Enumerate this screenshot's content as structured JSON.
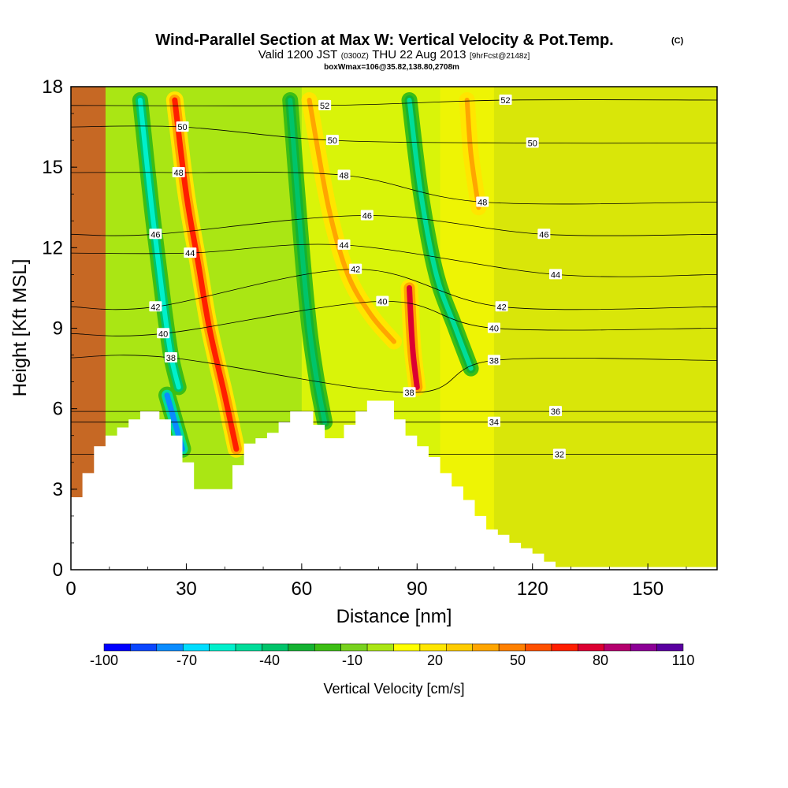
{
  "header": {
    "title": "Wind-Parallel Section at Max W: Vertical Velocity & Pot.Temp.",
    "title_tag": "(C)",
    "valid_prefix": "Valid 1200 JST",
    "valid_utc": "(0300Z)",
    "valid_date": "THU 22 Aug 2013",
    "forecast_tag": "[9hrFcst@2148z]",
    "box_info": "boxWmax=106@35.82,138.80,2708m"
  },
  "chart_data": {
    "type": "heatmap",
    "title": "Wind-Parallel Section at Max W: Vertical Velocity & Pot.Temp.",
    "xlabel": "Distance [nm]",
    "ylabel": "Height [Kft MSL]",
    "xlim": [
      0,
      168
    ],
    "ylim": [
      0,
      18
    ],
    "xticks": [
      0,
      30,
      60,
      90,
      120,
      150
    ],
    "yticks": [
      0,
      3,
      6,
      9,
      12,
      15,
      18
    ],
    "colorbar": {
      "label": "Vertical Velocity [cm/s]",
      "tick_labels": [
        -100,
        -70,
        -40,
        -10,
        20,
        50,
        80,
        110
      ],
      "levels": [
        -100,
        -90,
        -80,
        -70,
        -60,
        -50,
        -40,
        -30,
        -20,
        -10,
        0,
        10,
        20,
        30,
        40,
        50,
        60,
        70,
        80,
        90,
        100,
        110
      ],
      "colors": [
        "#0000ff",
        "#0a46ff",
        "#0a8cff",
        "#00ddff",
        "#00f0cc",
        "#00dd9a",
        "#00c46a",
        "#14b232",
        "#3cbe14",
        "#78d21e",
        "#aae614",
        "#ffff00",
        "#ffe600",
        "#ffcc00",
        "#ffa500",
        "#ff8000",
        "#ff5000",
        "#ff1e00",
        "#dc0032",
        "#b4006e",
        "#8c0096",
        "#5a00a0"
      ]
    },
    "terrain_top_kft": [
      [
        0,
        2.7
      ],
      [
        3,
        3.6
      ],
      [
        6,
        4.6
      ],
      [
        9,
        5.0
      ],
      [
        12,
        5.3
      ],
      [
        15,
        5.6
      ],
      [
        18,
        5.9
      ],
      [
        23,
        5.6
      ],
      [
        26,
        5.0
      ],
      [
        29,
        4.0
      ],
      [
        32,
        3.0
      ],
      [
        38,
        3.0
      ],
      [
        42,
        3.9
      ],
      [
        45,
        4.7
      ],
      [
        48,
        4.9
      ],
      [
        51,
        5.1
      ],
      [
        54,
        5.5
      ],
      [
        57,
        5.9
      ],
      [
        60,
        5.9
      ],
      [
        63,
        5.4
      ],
      [
        66,
        4.9
      ],
      [
        70,
        4.9
      ],
      [
        71,
        5.4
      ],
      [
        74,
        5.9
      ],
      [
        77,
        6.3
      ],
      [
        81,
        6.3
      ],
      [
        84,
        5.6
      ],
      [
        87,
        5.0
      ],
      [
        90,
        4.6
      ],
      [
        93,
        4.2
      ],
      [
        96,
        3.6
      ],
      [
        99,
        3.1
      ],
      [
        102,
        2.6
      ],
      [
        105,
        2.0
      ],
      [
        108,
        1.5
      ],
      [
        111,
        1.3
      ],
      [
        114,
        1.0
      ],
      [
        117,
        0.8
      ],
      [
        120,
        0.6
      ],
      [
        123,
        0.3
      ],
      [
        126,
        0.1
      ],
      [
        168,
        0.1
      ]
    ],
    "w_features": [
      {
        "name": "updraft band A",
        "value": 75,
        "path": [
          [
            27,
            17.5
          ],
          [
            30,
            14
          ],
          [
            33,
            11.5
          ],
          [
            36,
            9
          ],
          [
            40,
            6.5
          ],
          [
            43,
            4.5
          ]
        ]
      },
      {
        "name": "downdraft band A",
        "value": -55,
        "path": [
          [
            18,
            17.5
          ],
          [
            21,
            13.5
          ],
          [
            24,
            10
          ],
          [
            26,
            8
          ],
          [
            28,
            6.8
          ]
        ]
      },
      {
        "name": "downdraft A core",
        "value": -75,
        "path": [
          [
            25,
            6.5
          ],
          [
            27,
            5.5
          ],
          [
            29,
            4.5
          ]
        ]
      },
      {
        "name": "updraft band B",
        "value": 40,
        "path": [
          [
            62,
            17.5
          ],
          [
            67,
            13.5
          ],
          [
            72,
            11
          ],
          [
            78,
            9.5
          ],
          [
            84,
            8.5
          ]
        ]
      },
      {
        "name": "downdraft band B",
        "value": -40,
        "path": [
          [
            57,
            17.5
          ],
          [
            60,
            12
          ],
          [
            62,
            9
          ],
          [
            64,
            7
          ],
          [
            66,
            5.5
          ]
        ]
      },
      {
        "name": "updraft band C",
        "value": 80,
        "path": [
          [
            88,
            10.5
          ],
          [
            88.5,
            9
          ],
          [
            89,
            8
          ],
          [
            90,
            6.8
          ]
        ]
      },
      {
        "name": "downdraft band C",
        "value": -50,
        "path": [
          [
            88,
            17.5
          ],
          [
            91,
            14
          ],
          [
            95,
            11
          ],
          [
            100,
            9
          ],
          [
            104,
            7.5
          ]
        ]
      },
      {
        "name": "updraft band D",
        "value": 40,
        "path": [
          [
            103,
            17.5
          ],
          [
            104,
            15.5
          ],
          [
            106,
            13.5
          ]
        ]
      }
    ],
    "theta_label_positions": [
      {
        "label": "52",
        "x": 66,
        "y": 17.3
      },
      {
        "label": "52",
        "x": 113,
        "y": 17.5
      },
      {
        "label": "50",
        "x": 29,
        "y": 16.5
      },
      {
        "label": "50",
        "x": 68,
        "y": 16.0
      },
      {
        "label": "50",
        "x": 120,
        "y": 15.9
      },
      {
        "label": "48",
        "x": 28,
        "y": 14.8
      },
      {
        "label": "48",
        "x": 71,
        "y": 14.7
      },
      {
        "label": "48",
        "x": 107,
        "y": 13.7
      },
      {
        "label": "46",
        "x": 22,
        "y": 12.5
      },
      {
        "label": "46",
        "x": 77,
        "y": 13.2
      },
      {
        "label": "46",
        "x": 123,
        "y": 12.5
      },
      {
        "label": "44",
        "x": 31,
        "y": 11.8
      },
      {
        "label": "44",
        "x": 71,
        "y": 12.1
      },
      {
        "label": "44",
        "x": 126,
        "y": 11.0
      },
      {
        "label": "42",
        "x": 74,
        "y": 11.2
      },
      {
        "label": "42",
        "x": 22,
        "y": 9.8
      },
      {
        "label": "42",
        "x": 112,
        "y": 9.8
      },
      {
        "label": "40",
        "x": 81,
        "y": 10.0
      },
      {
        "label": "40",
        "x": 24,
        "y": 8.8
      },
      {
        "label": "40",
        "x": 110,
        "y": 9.0
      },
      {
        "label": "38",
        "x": 26,
        "y": 7.9
      },
      {
        "label": "38",
        "x": 88,
        "y": 6.6
      },
      {
        "label": "38",
        "x": 110,
        "y": 7.8
      },
      {
        "label": "36",
        "x": 126,
        "y": 5.9
      },
      {
        "label": "34",
        "x": 110,
        "y": 5.5
      },
      {
        "label": "32",
        "x": 127,
        "y": 4.3
      }
    ]
  },
  "colors": {
    "background": "#ffffff",
    "axis": "#000000",
    "contour": "#000000",
    "terrain": "#ffffff"
  }
}
